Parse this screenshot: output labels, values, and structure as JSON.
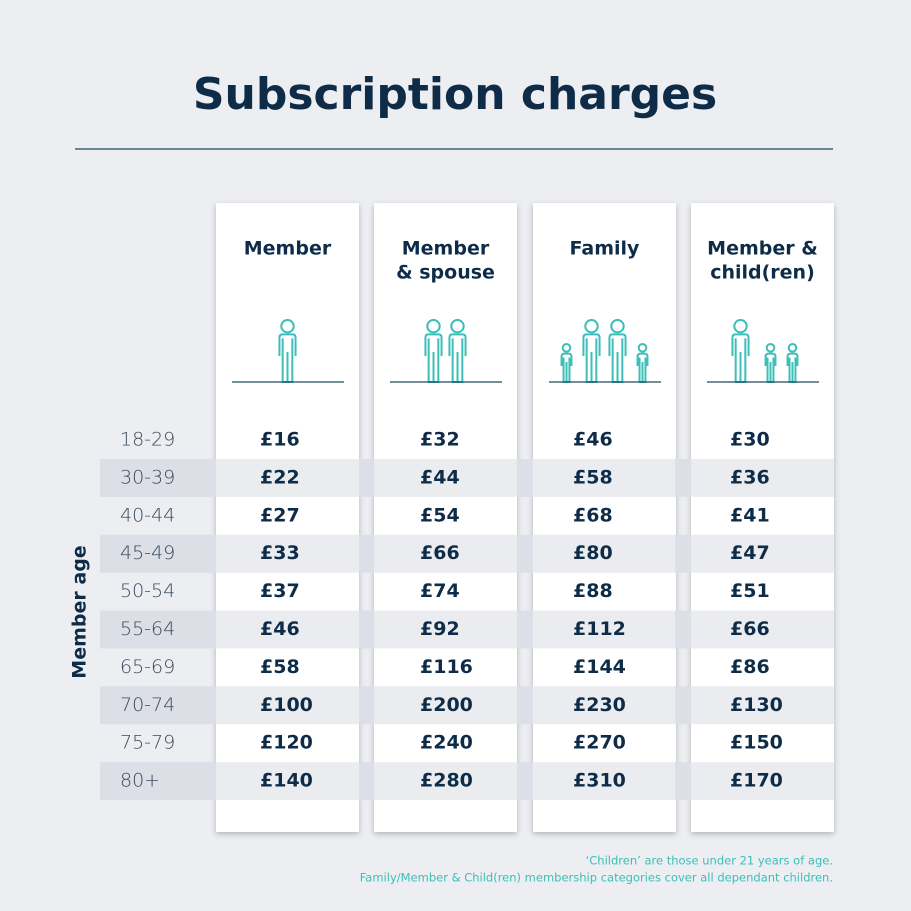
{
  "title": "Subscription charges",
  "side_label": "Member age",
  "columns": [
    {
      "header": [
        "Member"
      ]
    },
    {
      "header": [
        "Member",
        "& spouse"
      ]
    },
    {
      "header": [
        "Family"
      ]
    },
    {
      "header": [
        "Member &",
        "child(ren)"
      ]
    }
  ],
  "rows": [
    {
      "age": "18-29",
      "values": [
        "£16",
        "£32",
        "£46",
        "£30"
      ]
    },
    {
      "age": "30-39",
      "values": [
        "£22",
        "£44",
        "£58",
        "£36"
      ]
    },
    {
      "age": "40-44",
      "values": [
        "£27",
        "£54",
        "£68",
        "£41"
      ]
    },
    {
      "age": "45-49",
      "values": [
        "£33",
        "£66",
        "£80",
        "£47"
      ]
    },
    {
      "age": "50-54",
      "values": [
        "£37",
        "£74",
        "£88",
        "£51"
      ]
    },
    {
      "age": "55-64",
      "values": [
        "£46",
        "£92",
        "£112",
        "£66"
      ]
    },
    {
      "age": "65-69",
      "values": [
        "£58",
        "£116",
        "£144",
        "£86"
      ]
    },
    {
      "age": "70-74",
      "values": [
        "£100",
        "£200",
        "£230",
        "£130"
      ]
    },
    {
      "age": "75-79",
      "values": [
        "£120",
        "£240",
        "£270",
        "£150"
      ]
    },
    {
      "age": "80+",
      "values": [
        "£140",
        "£280",
        "£310",
        "£170"
      ]
    }
  ],
  "footnotes": [
    "‘Children’ are those under 21 years of age.",
    "Family/Member & Child(ren) membership categories cover all dependant children."
  ]
}
